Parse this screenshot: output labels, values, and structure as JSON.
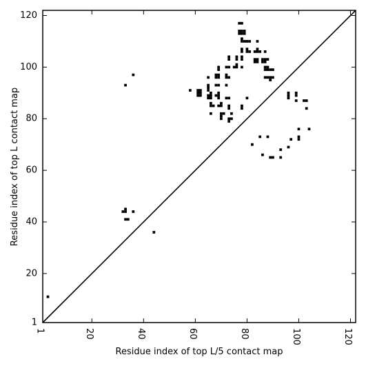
{
  "chart_data": {
    "type": "scatter",
    "xlabel": "Residue index of top L/5 contact map",
    "ylabel": "Residue index of top L contact map",
    "xlim": [
      1,
      122
    ],
    "ylim": [
      1,
      122
    ],
    "xticks": [
      1,
      20,
      40,
      60,
      80,
      100,
      120
    ],
    "yticks": [
      1,
      20,
      40,
      60,
      80,
      100,
      120
    ],
    "x_tick_labels": [
      "1",
      "20",
      "40",
      "60",
      "80",
      "100",
      "120"
    ],
    "y_tick_labels": [
      "1",
      "20",
      "40",
      "60",
      "80",
      "100",
      "120"
    ],
    "diagonal": true,
    "grid": false,
    "marker_color": "#000000",
    "series": [
      {
        "points": [
          [
            3,
            11
          ],
          [
            36,
            97
          ],
          [
            33,
            93
          ],
          [
            44,
            36
          ],
          [
            32,
            44
          ],
          [
            33,
            44
          ],
          [
            33,
            45
          ],
          [
            36,
            44
          ],
          [
            33,
            41
          ],
          [
            34,
            41
          ],
          [
            58,
            91
          ],
          [
            61,
            91
          ],
          [
            62,
            91
          ],
          [
            61,
            90
          ],
          [
            62,
            90
          ],
          [
            61,
            89
          ],
          [
            62,
            89
          ],
          [
            65,
            96
          ],
          [
            65,
            93
          ],
          [
            65,
            92
          ],
          [
            65,
            91
          ],
          [
            66,
            90
          ],
          [
            65,
            89
          ],
          [
            66,
            89
          ],
          [
            65,
            88
          ],
          [
            66,
            88
          ],
          [
            68,
            89
          ],
          [
            69,
            90
          ],
          [
            69,
            89
          ],
          [
            69,
            88
          ],
          [
            66,
            86
          ],
          [
            66,
            85
          ],
          [
            67,
            85
          ],
          [
            69,
            85
          ],
          [
            70,
            86
          ],
          [
            70,
            85
          ],
          [
            66,
            82
          ],
          [
            70,
            82
          ],
          [
            71,
            82
          ],
          [
            70,
            81
          ],
          [
            70,
            80
          ],
          [
            68,
            97
          ],
          [
            69,
            97
          ],
          [
            68,
            96
          ],
          [
            69,
            96
          ],
          [
            68,
            93
          ],
          [
            69,
            93
          ],
          [
            69,
            100
          ],
          [
            69,
            99
          ],
          [
            72,
            100
          ],
          [
            73,
            100
          ],
          [
            72,
            97
          ],
          [
            72,
            96
          ],
          [
            73,
            96
          ],
          [
            72,
            93
          ],
          [
            72,
            88
          ],
          [
            73,
            88
          ],
          [
            73,
            85
          ],
          [
            73,
            84
          ],
          [
            73,
            80
          ],
          [
            73,
            79
          ],
          [
            74,
            80
          ],
          [
            74,
            82
          ],
          [
            73,
            104
          ],
          [
            73,
            103
          ],
          [
            75,
            100
          ],
          [
            76,
            100
          ],
          [
            76,
            101
          ],
          [
            76,
            104
          ],
          [
            76,
            103
          ],
          [
            77,
            117
          ],
          [
            78,
            117
          ],
          [
            77,
            114
          ],
          [
            78,
            114
          ],
          [
            79,
            114
          ],
          [
            77,
            113
          ],
          [
            78,
            113
          ],
          [
            79,
            113
          ],
          [
            78,
            111
          ],
          [
            78,
            110
          ],
          [
            79,
            110
          ],
          [
            80,
            110
          ],
          [
            81,
            110
          ],
          [
            78,
            107
          ],
          [
            78,
            106
          ],
          [
            80,
            107
          ],
          [
            80,
            106
          ],
          [
            81,
            106
          ],
          [
            78,
            104
          ],
          [
            78,
            103
          ],
          [
            78,
            100
          ],
          [
            80,
            88
          ],
          [
            78,
            85
          ],
          [
            78,
            84
          ],
          [
            84,
            110
          ],
          [
            84,
            107
          ],
          [
            83,
            106
          ],
          [
            84,
            106
          ],
          [
            85,
            106
          ],
          [
            83,
            103
          ],
          [
            84,
            103
          ],
          [
            83,
            102
          ],
          [
            84,
            102
          ],
          [
            87,
            106
          ],
          [
            86,
            103
          ],
          [
            87,
            103
          ],
          [
            88,
            103
          ],
          [
            86,
            102
          ],
          [
            87,
            102
          ],
          [
            87,
            100
          ],
          [
            88,
            100
          ],
          [
            87,
            99
          ],
          [
            88,
            99
          ],
          [
            89,
            99
          ],
          [
            90,
            99
          ],
          [
            87,
            96
          ],
          [
            88,
            96
          ],
          [
            89,
            96
          ],
          [
            90,
            96
          ],
          [
            89,
            95
          ],
          [
            96,
            90
          ],
          [
            96,
            89
          ],
          [
            96,
            88
          ],
          [
            99,
            90
          ],
          [
            99,
            89
          ],
          [
            99,
            87
          ],
          [
            102,
            87
          ],
          [
            103,
            87
          ],
          [
            103,
            84
          ],
          [
            100,
            76
          ],
          [
            104,
            76
          ],
          [
            100,
            73
          ],
          [
            100,
            72
          ],
          [
            97,
            72
          ],
          [
            96,
            69
          ],
          [
            93,
            68
          ],
          [
            93,
            65
          ],
          [
            89,
            65
          ],
          [
            90,
            65
          ],
          [
            85,
            73
          ],
          [
            88,
            73
          ],
          [
            86,
            66
          ],
          [
            82,
            70
          ]
        ]
      }
    ]
  }
}
